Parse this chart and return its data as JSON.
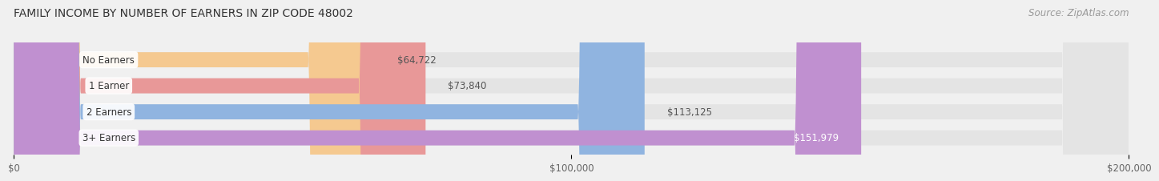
{
  "title": "FAMILY INCOME BY NUMBER OF EARNERS IN ZIP CODE 48002",
  "source": "Source: ZipAtlas.com",
  "categories": [
    "No Earners",
    "1 Earner",
    "2 Earners",
    "3+ Earners"
  ],
  "values": [
    64722,
    73840,
    113125,
    151979
  ],
  "labels": [
    "$64,722",
    "$73,840",
    "$113,125",
    "$151,979"
  ],
  "bar_colors": [
    "#f5c990",
    "#e89898",
    "#90b4e0",
    "#c090d0"
  ],
  "label_colors": [
    "#555555",
    "#555555",
    "#555555",
    "#ffffff"
  ],
  "xlim": [
    0,
    200000
  ],
  "xtick_labels": [
    "$0",
    "$100,000",
    "$200,000"
  ],
  "background_color": "#f0f0f0",
  "bar_background_color": "#e4e4e4",
  "title_fontsize": 10,
  "source_fontsize": 8.5,
  "label_fontsize": 8.5,
  "category_fontsize": 8.5,
  "tick_fontsize": 8.5,
  "bar_height": 0.58
}
